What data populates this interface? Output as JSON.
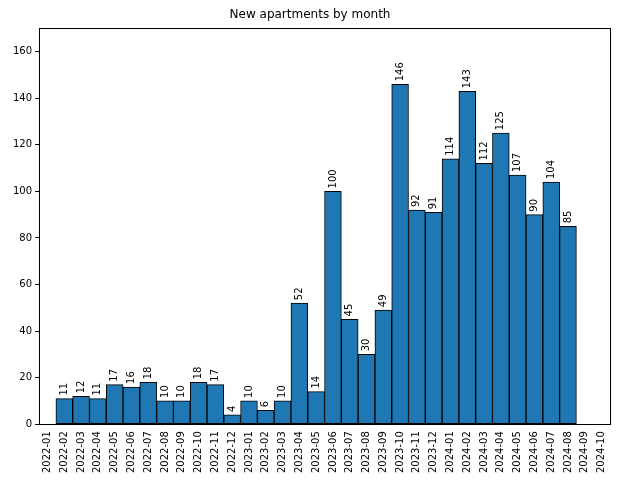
{
  "chart_data": {
    "type": "bar",
    "title": "New apartments by month",
    "categories": [
      "2022-01",
      "2022-02",
      "2022-03",
      "2022-04",
      "2022-05",
      "2022-06",
      "2022-07",
      "2022-08",
      "2022-09",
      "2022-10",
      "2022-11",
      "2022-12",
      "2023-01",
      "2023-02",
      "2023-03",
      "2023-04",
      "2023-05",
      "2023-06",
      "2023-07",
      "2023-08",
      "2023-09",
      "2023-10",
      "2023-11",
      "2023-12",
      "2024-01",
      "2024-02",
      "2024-03",
      "2024-04",
      "2024-05",
      "2024-06",
      "2024-07",
      "2024-08",
      "2024-09",
      "2024-10"
    ],
    "values": [
      null,
      11,
      12,
      11,
      17,
      16,
      18,
      10,
      10,
      18,
      17,
      4,
      10,
      6,
      10,
      52,
      14,
      100,
      45,
      30,
      49,
      146,
      92,
      91,
      114,
      143,
      112,
      125,
      107,
      90,
      104,
      85,
      null,
      null
    ],
    "color": "#1f77b4",
    "ylim": [
      0,
      170
    ],
    "yticks": [
      0,
      20,
      40,
      60,
      80,
      100,
      120,
      140,
      160
    ],
    "grid": false,
    "data_labels": true
  }
}
